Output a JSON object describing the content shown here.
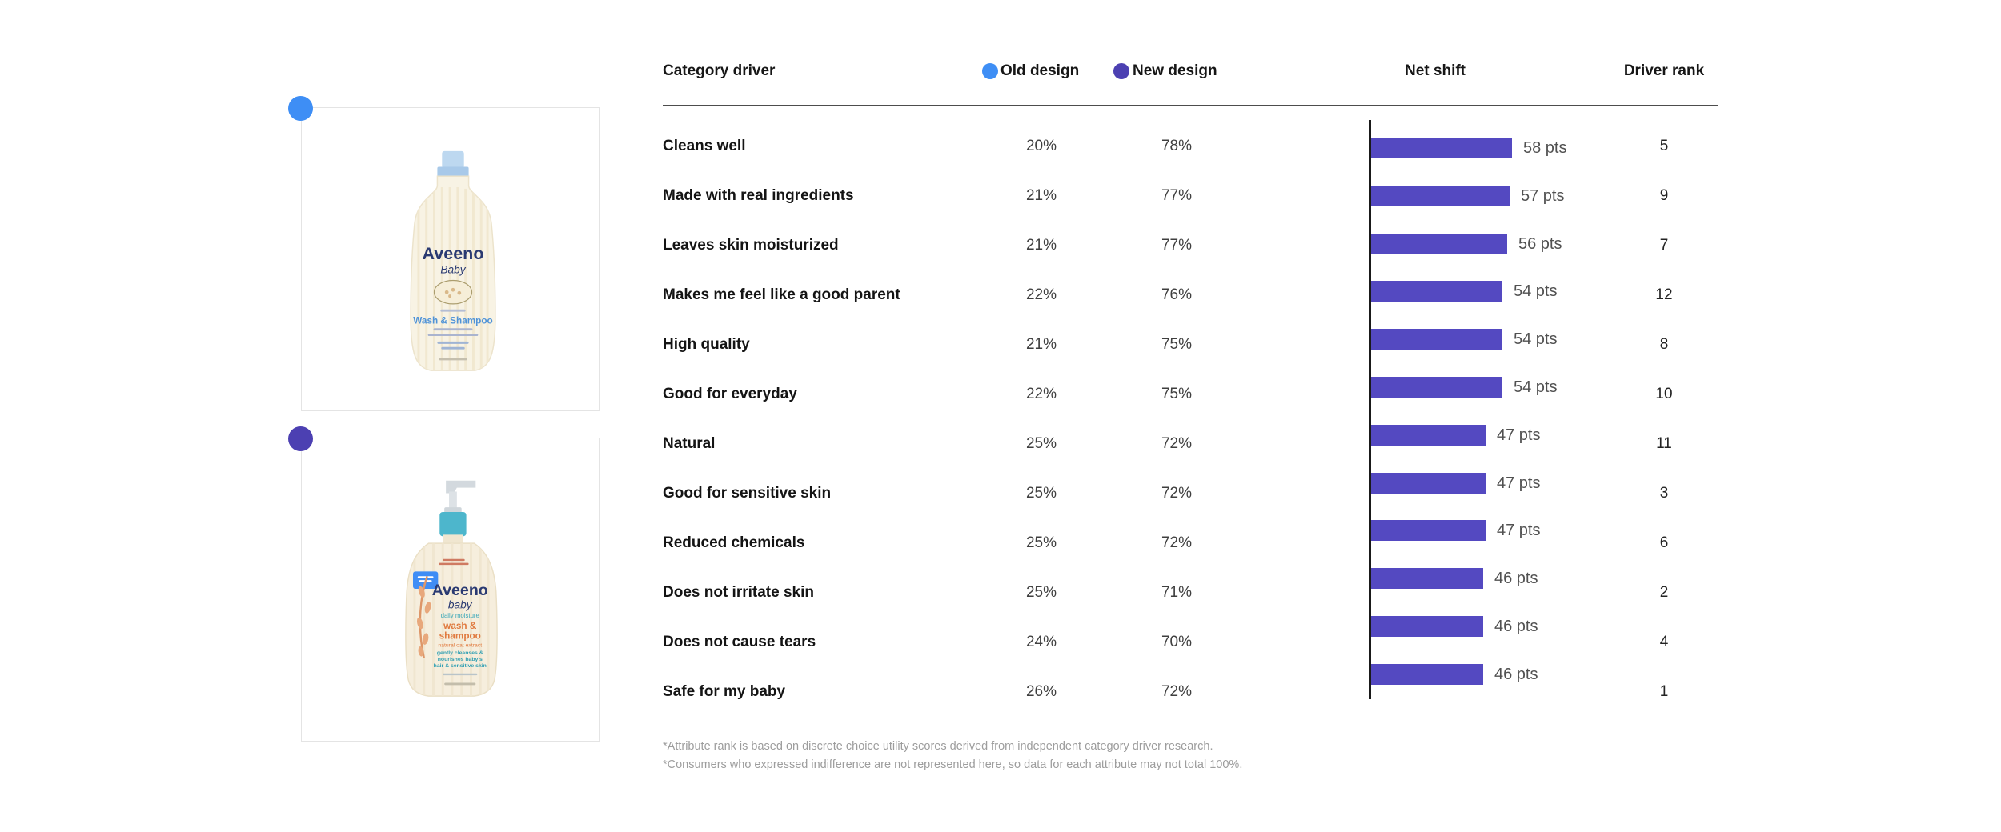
{
  "page": {
    "background": "#ffffff"
  },
  "products": [
    {
      "marker_color": "#3e8ef5",
      "bottle": {
        "brand": "Aveeno",
        "sub_brand": "Baby",
        "product_line": "Wash & Shampoo"
      }
    },
    {
      "marker_color": "#4c40b2",
      "bottle": {
        "brand": "Aveeno",
        "sub_brand": "baby",
        "tier_line": "daily moisture",
        "product_line_1": "wash &",
        "product_line_2": "shampoo",
        "extract_line": "natural oat extract",
        "claim_line_1": "gently cleanses &",
        "claim_line_2": "nourishes baby's",
        "claim_line_3": "hair & sensitive skin"
      }
    }
  ],
  "table": {
    "header": {
      "category": "Category driver",
      "net_shift": "Net shift",
      "driver_rank": "Driver rank"
    },
    "legend": {
      "old": {
        "label": "Old design",
        "color": "#3e8ef5"
      },
      "new": {
        "label": "New design",
        "color": "#4c40b2"
      }
    },
    "rows": [
      {
        "category": "Cleans well",
        "old": "20%",
        "new": "78%",
        "pts": 58,
        "pts_label": "58 pts",
        "rank": "5"
      },
      {
        "category": "Made with real ingredients",
        "old": "21%",
        "new": "77%",
        "pts": 57,
        "pts_label": "57 pts",
        "rank": "9"
      },
      {
        "category": "Leaves skin moisturized",
        "old": "21%",
        "new": "77%",
        "pts": 56,
        "pts_label": "56 pts",
        "rank": "7"
      },
      {
        "category": "Makes me feel like a good parent",
        "old": "22%",
        "new": "76%",
        "pts": 54,
        "pts_label": "54 pts",
        "rank": "12"
      },
      {
        "category": "High quality",
        "old": "21%",
        "new": "75%",
        "pts": 54,
        "pts_label": "54 pts",
        "rank": "8"
      },
      {
        "category": "Good for everyday",
        "old": "22%",
        "new": "75%",
        "pts": 54,
        "pts_label": "54 pts",
        "rank": "10"
      },
      {
        "category": "Natural",
        "old": "25%",
        "new": "72%",
        "pts": 47,
        "pts_label": "47 pts",
        "rank": "11"
      },
      {
        "category": "Good for sensitive skin",
        "old": "25%",
        "new": "72%",
        "pts": 47,
        "pts_label": "47 pts",
        "rank": "3"
      },
      {
        "category": "Reduced chemicals",
        "old": "25%",
        "new": "72%",
        "pts": 47,
        "pts_label": "47 pts",
        "rank": "6"
      },
      {
        "category": "Does not irritate skin",
        "old": "25%",
        "new": "71%",
        "pts": 46,
        "pts_label": "46 pts",
        "rank": "2"
      },
      {
        "category": "Does not cause tears",
        "old": "24%",
        "new": "70%",
        "pts": 46,
        "pts_label": "46 pts",
        "rank": "4"
      },
      {
        "category": "Safe for my baby",
        "old": "26%",
        "new": "72%",
        "pts": 46,
        "pts_label": "46 pts",
        "rank": "1"
      }
    ]
  },
  "footnotes": [
    "*Attribute rank is based on discrete choice utility scores derived from independent category driver research.",
    "*Consumers who expressed indifference are not represented here, so data for each attribute may not total 100%."
  ],
  "chart_data": {
    "type": "bar",
    "orientation": "horizontal",
    "title": "",
    "categories": [
      "Cleans well",
      "Made with real ingredients",
      "Leaves skin moisturized",
      "Makes me feel like a good parent",
      "High quality",
      "Good for everyday",
      "Natural",
      "Good for sensitive skin",
      "Reduced chemicals",
      "Does not irritate skin",
      "Does not cause tears",
      "Safe for my baby"
    ],
    "series": [
      {
        "name": "Old design (%)",
        "values": [
          20,
          21,
          21,
          22,
          21,
          22,
          25,
          25,
          25,
          25,
          24,
          26
        ]
      },
      {
        "name": "New design (%)",
        "values": [
          78,
          77,
          77,
          76,
          75,
          75,
          72,
          72,
          72,
          71,
          70,
          72
        ]
      },
      {
        "name": "Net shift (pts)",
        "values": [
          58,
          57,
          56,
          54,
          54,
          54,
          47,
          47,
          47,
          46,
          46,
          46
        ]
      },
      {
        "name": "Driver rank",
        "values": [
          5,
          9,
          7,
          12,
          8,
          10,
          11,
          3,
          6,
          2,
          4,
          1
        ]
      }
    ],
    "bar_series": "Net shift (pts)",
    "bar_color": "#5449c1",
    "xlim": [
      0,
      60
    ],
    "grid": false,
    "legend_position": "top",
    "legend": [
      "Old design",
      "New design"
    ],
    "value_suffix": " pts"
  }
}
